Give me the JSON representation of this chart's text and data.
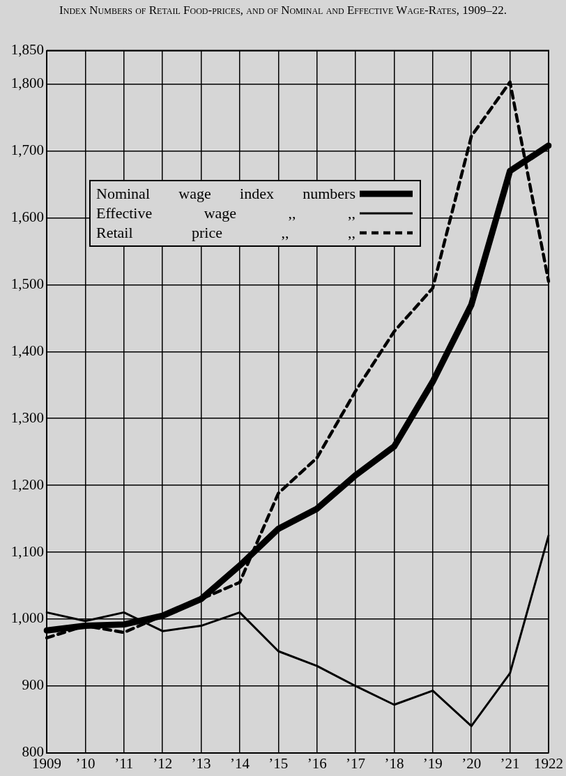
{
  "chart_data": {
    "type": "line",
    "title": "Index Numbers of Retail Food-prices, and of Nominal and Effective Wage-Rates, 1909–22.",
    "categories": [
      "1909",
      "’10",
      "’11",
      "’12",
      "’13",
      "’14",
      "’15",
      "’16",
      "’17",
      "’18",
      "’19",
      "’20",
      "’21",
      "1922"
    ],
    "series": [
      {
        "name": "Nominal wage index numbers",
        "color": "#000000",
        "line_style": "solid",
        "values": [
          983,
          990,
          992,
          1005,
          1030,
          1080,
          1135,
          1165,
          1215,
          1258,
          1355,
          1470,
          1670,
          1708
        ]
      },
      {
        "name": "Effective wage ,, ,,",
        "color": "#000000",
        "line_style": "solid",
        "values": [
          1010,
          997,
          1010,
          982,
          990,
          1010,
          952,
          930,
          900,
          872,
          893,
          840,
          919,
          1125
        ]
      },
      {
        "name": "Retail price ,, ,,",
        "color": "#000000",
        "line_style": "dashed",
        "values": [
          972,
          990,
          980,
          1005,
          1030,
          1055,
          1188,
          1241,
          1341,
          1430,
          1495,
          1722,
          1803,
          1505
        ]
      }
    ],
    "ylim": [
      800,
      1850
    ],
    "yticks": [
      {
        "value": 800,
        "label": "800"
      },
      {
        "value": 900,
        "label": "900"
      },
      {
        "value": 1000,
        "label": "1,000"
      },
      {
        "value": 1100,
        "label": "1,100"
      },
      {
        "value": 1200,
        "label": "1,200"
      },
      {
        "value": 1300,
        "label": "1,300"
      },
      {
        "value": 1400,
        "label": "1,400"
      },
      {
        "value": 1500,
        "label": "1,500"
      },
      {
        "value": 1600,
        "label": "1,600"
      },
      {
        "value": 1700,
        "label": "1,700"
      },
      {
        "value": 1800,
        "label": "1,800"
      },
      {
        "value": 1850,
        "label": "1,850"
      }
    ],
    "grid": true,
    "legend": "top left",
    "marker": "none"
  }
}
